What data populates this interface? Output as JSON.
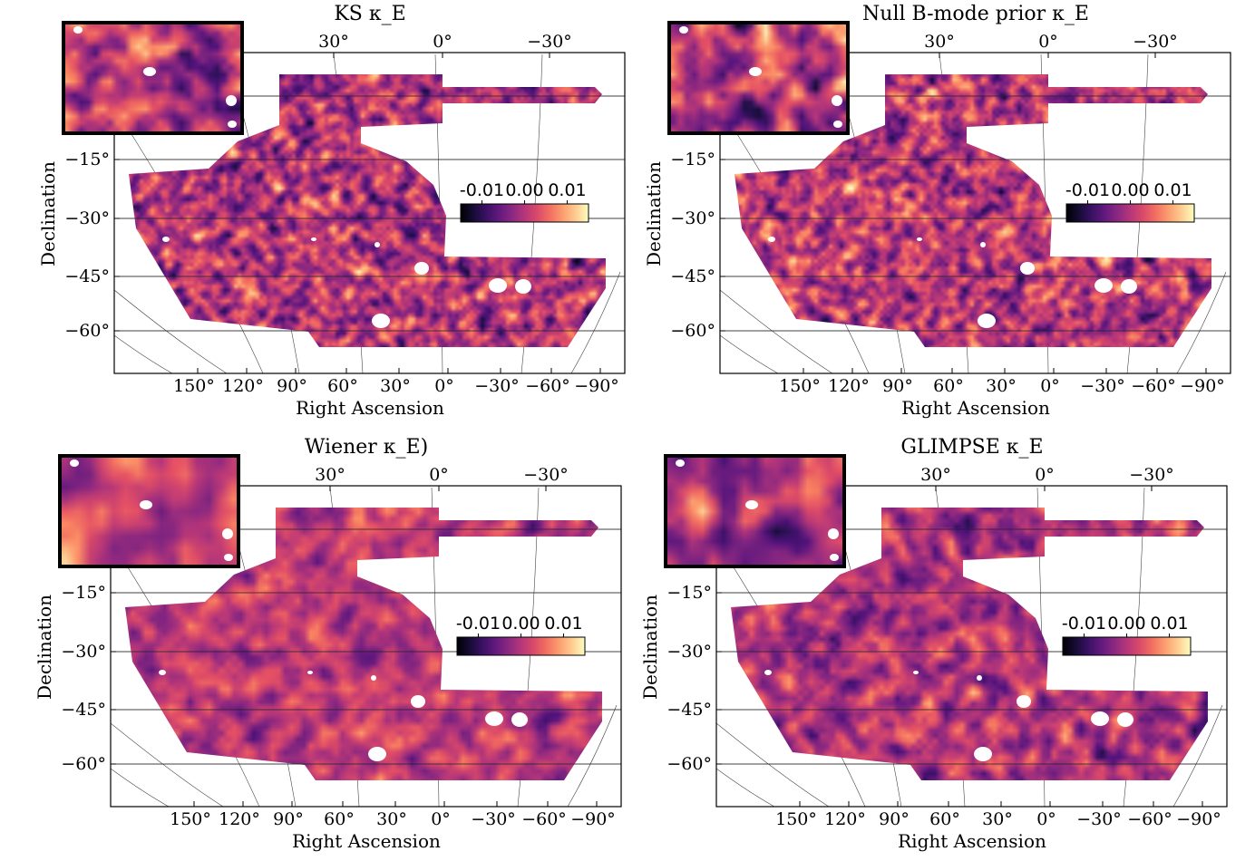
{
  "chart_data": [
    {
      "type": "heatmap",
      "title": "KS κ_E",
      "xlabel": "Right Ascension",
      "ylabel": "Declination",
      "top_ticks": [
        "30°",
        "0°",
        "−30°"
      ],
      "bottom_ticks": [
        "150°",
        "120°",
        "90°",
        "60°",
        "30°",
        "0°",
        "−30°",
        "−60°",
        "−90°"
      ],
      "dec_ticks": [
        "−15°",
        "−30°",
        "−45°",
        "−60°"
      ],
      "colorbar": {
        "ticks": [
          "-0.01",
          "0.00",
          "0.01"
        ],
        "range": [
          -0.015,
          0.015
        ],
        "colormap": "magma"
      },
      "inset": true,
      "noise_scale": "fine",
      "grid": true
    },
    {
      "type": "heatmap",
      "title": "Null B-mode prior κ_E",
      "xlabel": "Right Ascension",
      "ylabel": "Declination",
      "top_ticks": [
        "30°",
        "0°",
        "−30°"
      ],
      "bottom_ticks": [
        "150°",
        "120°",
        "90°",
        "60°",
        "30°",
        "0°",
        "−30°",
        "−60°",
        "−90°"
      ],
      "dec_ticks": [
        "−15°",
        "−30°",
        "−45°",
        "−60°"
      ],
      "colorbar": {
        "ticks": [
          "-0.01",
          "0.00",
          "0.01"
        ],
        "range": [
          -0.015,
          0.015
        ],
        "colormap": "magma"
      },
      "inset": true,
      "noise_scale": "fine",
      "grid": true
    },
    {
      "type": "heatmap",
      "title": "Wiener κ_E)",
      "xlabel": "Right Ascension",
      "ylabel": "Declination",
      "top_ticks": [
        "30°",
        "0°",
        "−30°"
      ],
      "bottom_ticks": [
        "150°",
        "120°",
        "90°",
        "60°",
        "30°",
        "0°",
        "−30°",
        "−60°",
        "−90°"
      ],
      "dec_ticks": [
        "−15°",
        "−30°",
        "−45°",
        "−60°"
      ],
      "colorbar": {
        "ticks": [
          "-0.01",
          "0.00",
          "0.01"
        ],
        "range": [
          -0.015,
          0.015
        ],
        "colormap": "magma"
      },
      "inset": true,
      "noise_scale": "smooth",
      "grid": true
    },
    {
      "type": "heatmap",
      "title": "GLIMPSE κ_E",
      "xlabel": "Right Ascension",
      "ylabel": "Declination",
      "top_ticks": [
        "30°",
        "0°",
        "−30°"
      ],
      "bottom_ticks": [
        "150°",
        "120°",
        "90°",
        "60°",
        "30°",
        "0°",
        "−30°",
        "−60°",
        "−90°"
      ],
      "dec_ticks": [
        "−15°",
        "−30°",
        "−45°",
        "−60°"
      ],
      "colorbar": {
        "ticks": [
          "-0.01",
          "0.00",
          "0.01"
        ],
        "range": [
          -0.015,
          0.015
        ],
        "colormap": "magma"
      },
      "inset": true,
      "noise_scale": "medium",
      "grid": true
    }
  ]
}
